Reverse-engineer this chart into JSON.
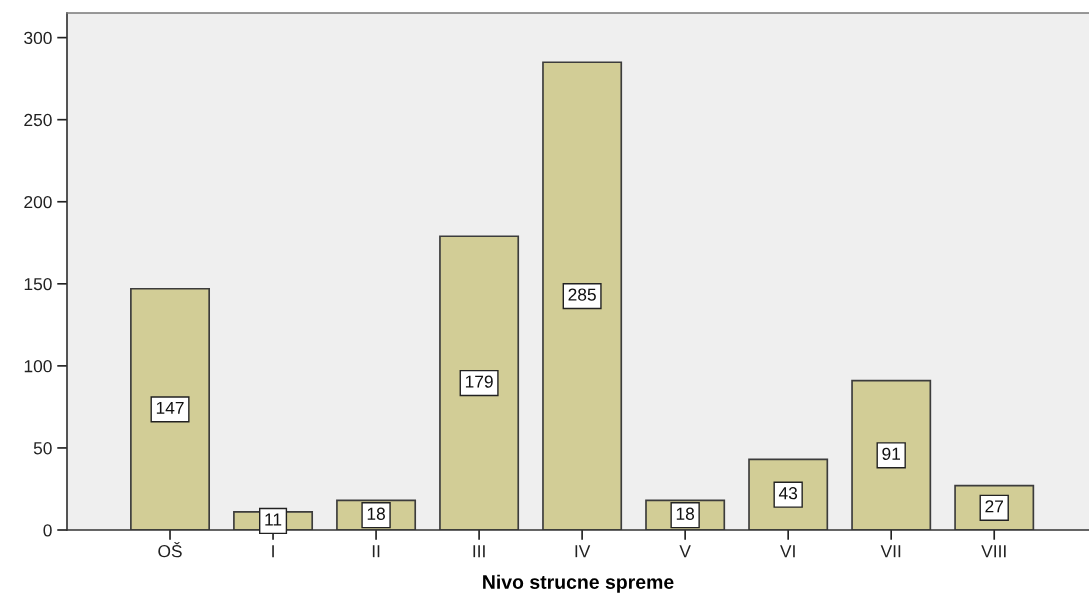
{
  "chart_data": {
    "type": "bar",
    "xlabel": "Nivo strucne spreme",
    "categories": [
      "OŠ",
      "I",
      "II",
      "III",
      "IV",
      "V",
      "VI",
      "VII",
      "VIII"
    ],
    "values": [
      147,
      11,
      18,
      179,
      285,
      18,
      43,
      91,
      27
    ],
    "color": "#d2cd96",
    "ylim": [
      0,
      315
    ],
    "yticks": [
      0,
      50,
      100,
      150,
      200,
      250,
      300
    ],
    "grid": false,
    "data_labels": true
  }
}
